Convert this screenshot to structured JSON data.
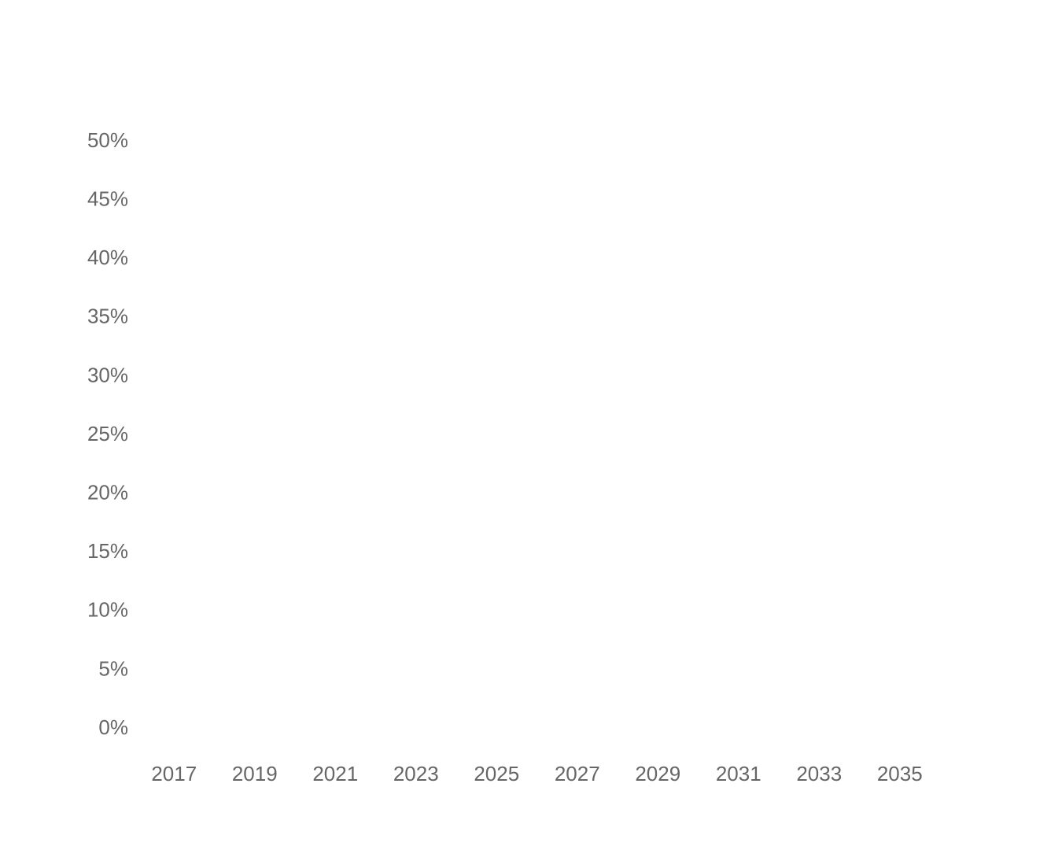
{
  "chart_data": {
    "type": "line",
    "xlim": [
      2016,
      2036
    ],
    "xticks": [
      2017,
      2019,
      2021,
      2023,
      2025,
      2027,
      2029,
      2031,
      2033,
      2035
    ],
    "ylim": [
      0,
      50
    ],
    "yticks": [
      {
        "value": 0,
        "label": "0%"
      },
      {
        "value": 5,
        "label": "5%"
      },
      {
        "value": 10,
        "label": "10%"
      },
      {
        "value": 15,
        "label": "15%"
      },
      {
        "value": 20,
        "label": "20%"
      },
      {
        "value": 25,
        "label": "25%"
      },
      {
        "value": 30,
        "label": "30%"
      },
      {
        "value": 35,
        "label": "35%"
      },
      {
        "value": 40,
        "label": "40%"
      },
      {
        "value": 45,
        "label": "45%"
      },
      {
        "value": 50,
        "label": "50%"
      }
    ]
  }
}
